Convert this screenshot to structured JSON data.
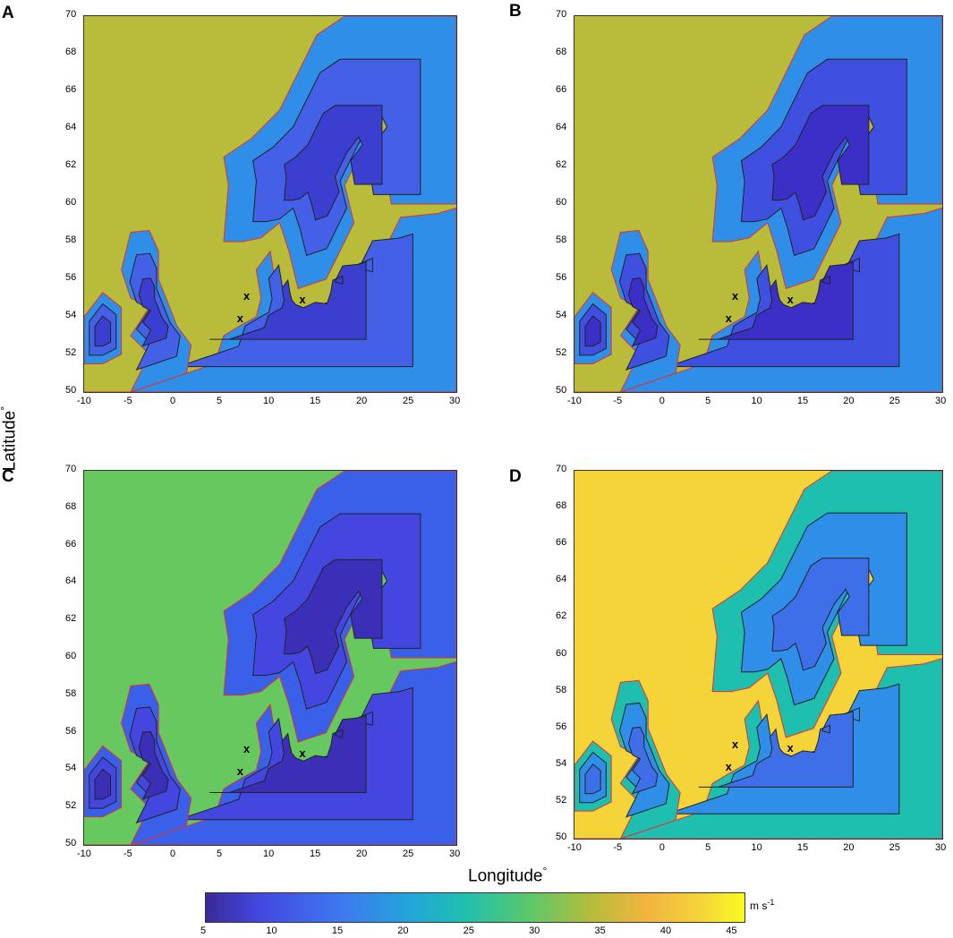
{
  "panels": [
    {
      "letter": "A"
    },
    {
      "letter": "B"
    },
    {
      "letter": "C"
    },
    {
      "letter": "D"
    }
  ],
  "axes": {
    "x_ticks": [
      "-10",
      "-5",
      "0",
      "5",
      "10",
      "15",
      "20",
      "25",
      "30"
    ],
    "y_ticks": [
      "70",
      "68",
      "66",
      "64",
      "62",
      "60",
      "58",
      "56",
      "54",
      "52",
      "50"
    ],
    "xlabel": "Longitude",
    "xlabel_unit": "°",
    "ylabel": "Latitude",
    "ylabel_unit": "°"
  },
  "markers": [
    {
      "label": "x",
      "lon": 7.5,
      "lat": 55.1
    },
    {
      "label": "x",
      "lon": 6.8,
      "lat": 53.9
    },
    {
      "label": "x",
      "lon": 13.5,
      "lat": 54.9
    }
  ],
  "colorbar": {
    "ticks": [
      "5",
      "10",
      "15",
      "20",
      "25",
      "30",
      "35",
      "40",
      "45"
    ],
    "unit": "m s",
    "unit_exp": "-1",
    "min": 5,
    "max": 46,
    "colors": [
      "#3b2a98",
      "#4348e0",
      "#3f78f0",
      "#22a6d8",
      "#1fbfb0",
      "#5bc86a",
      "#b8bc3a",
      "#f2b53f",
      "#f5d43a",
      "#f8fb1f"
    ]
  },
  "chart_data": {
    "type": "heatmap",
    "x_range": [
      -10,
      30
    ],
    "y_range": [
      50,
      70
    ],
    "panels": [
      {
        "letter": "A",
        "sea_color": "#b8bc3a",
        "land_color": "#2f8fe8",
        "inland_color": "#4460e6",
        "deep_inland": "#3b3fcf"
      },
      {
        "letter": "B",
        "sea_color": "#b8bc3a",
        "land_color": "#2f8fe8",
        "inland_color": "#3f4fe0",
        "deep_inland": "#3b2fc8"
      },
      {
        "letter": "C",
        "sea_color": "#67c860",
        "land_color": "#3a60ea",
        "inland_color": "#4347df",
        "deep_inland": "#3b2fb8"
      },
      {
        "letter": "D",
        "sea_color": "#f5d43a",
        "land_color": "#1fbfb0",
        "inland_color": "#2f8fe8",
        "deep_inland": "#3f6fe8"
      }
    ]
  }
}
